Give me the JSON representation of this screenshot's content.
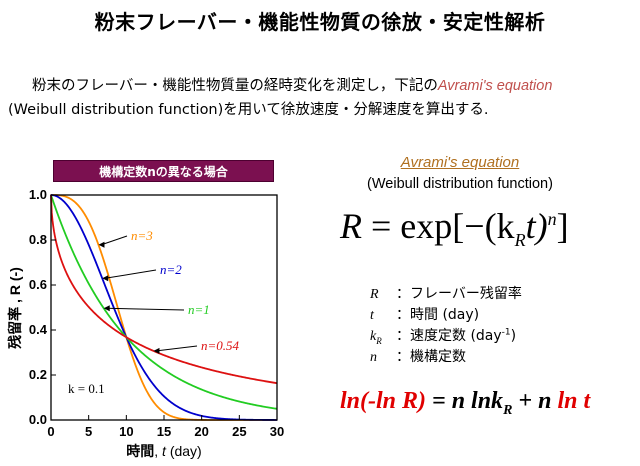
{
  "title": "粉末フレーバー・機能性物質の徐放・安定性解析",
  "intro": {
    "line1_pre": "粉末のフレーバー・機能性物質量の経時変化を測定し，下記の",
    "line1_highlight": "Avrami's  equation",
    "line2": "(Weibull distribution function)を用いて徐放速度・分解速度を算出する."
  },
  "equation": {
    "name": "Avrami's equation",
    "subtitle": "(Weibull distribution function)",
    "lhs": "R",
    "eq": " = exp[−(k",
    "sub_r": "R",
    "t": "t)",
    "sup_n": "n",
    "close": "]"
  },
  "legend": {
    "r": {
      "sym": "R",
      "text": "：フレーバー残留率"
    },
    "t": {
      "sym": "t",
      "text": "：時間 (day)"
    },
    "k": {
      "sym": "k",
      "sub": "R",
      "text_pre": "：速度定数 (day",
      "sup": "-1",
      "text_post": ")"
    },
    "n": {
      "sym": "n",
      "text": "：機構定数"
    }
  },
  "linear_eq": {
    "red1": "ln(-ln R)",
    "black1": " = n lnk",
    "sub": "R",
    "black2": " + n ",
    "red2": "ln t"
  },
  "colors": {
    "banner": "#7b1050",
    "accent_red": "#e00000",
    "eq_name": "#b07020",
    "n3": "#ff8c00",
    "n2": "#0000cc",
    "n1": "#22cc22",
    "n054": "#dd1111"
  },
  "chart_data": {
    "type": "line",
    "banner": "機構定数nの異なる場合",
    "xlabel_pre": "時間",
    "xlabel_var": "t",
    "xlabel_unit": " (day)",
    "ylabel": "残留率 , R (-)",
    "xlim": [
      0,
      30
    ],
    "ylim": [
      0,
      1.0
    ],
    "xticks": [
      0,
      5,
      10,
      15,
      20,
      25,
      30
    ],
    "yticks": [
      0,
      0.2,
      0.4,
      0.6,
      0.8,
      1.0
    ],
    "k": 0.1,
    "k_label": "k = 0.1",
    "grid": false,
    "series": [
      {
        "name": "n=3",
        "n": 3,
        "color": "#ff8c00"
      },
      {
        "name": "n=2",
        "n": 2,
        "color": "#0000cc"
      },
      {
        "name": "n=1",
        "n": 1,
        "color": "#22cc22"
      },
      {
        "name": "n=0.54",
        "n": 0.54,
        "color": "#dd1111"
      }
    ]
  }
}
